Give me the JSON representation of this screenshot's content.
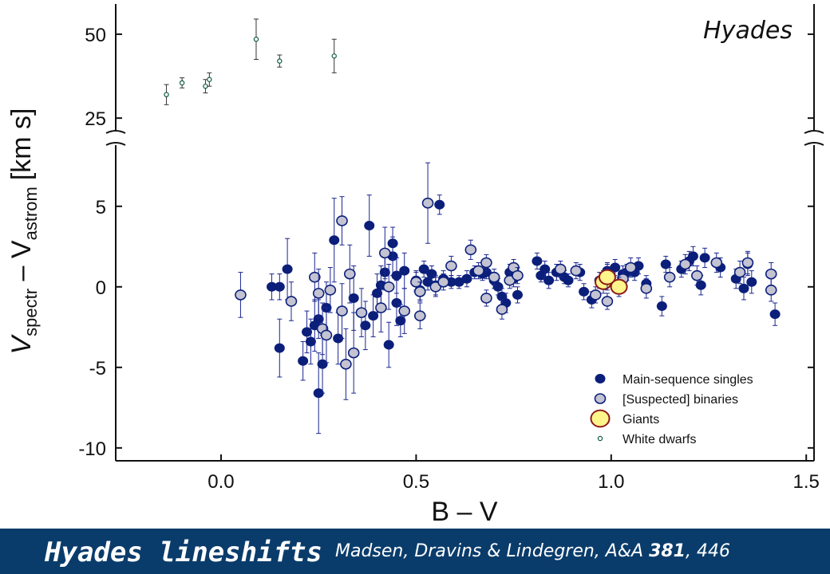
{
  "chart_data": {
    "type": "scatter",
    "title": "Hyades",
    "xlabel": "B – V",
    "ylabel_main": "V",
    "ylabel_sub1": "spectr",
    "ylabel_mid": " – V",
    "ylabel_sub2": "astrom",
    "ylabel_unit": "[km s]",
    "xlim": [
      -0.27,
      1.52
    ],
    "x_ticks": [
      "0.0",
      "0.5",
      "1.0",
      "1.5"
    ],
    "x_tick_values": [
      0.0,
      0.5,
      1.0,
      1.5
    ],
    "ylim_lower": [
      -10.8,
      8.8
    ],
    "y_ticks_lower": [
      "5",
      "0",
      "-5",
      "-10"
    ],
    "y_tick_values_lower": [
      5,
      0,
      -5,
      -10
    ],
    "ylim_upper": [
      21,
      59
    ],
    "y_ticks_upper": [
      "50",
      "25"
    ],
    "y_tick_values_upper": [
      50,
      25
    ],
    "legend_position": "bottom-right",
    "colors": {
      "main_sequence": "#0b1f7a",
      "binaries": "#c3c3d2",
      "giants": "#fff58a",
      "giant_edge": "#8b1a1a",
      "white_dwarf": "#0d5a40",
      "errorbar": "#1a2690"
    },
    "series": [
      {
        "name": "Main-sequence singles",
        "points": [
          [
            0.13,
            0.0,
            0.8
          ],
          [
            0.15,
            0.0,
            0.8
          ],
          [
            0.15,
            -3.8,
            1.8
          ],
          [
            0.17,
            1.1,
            1.9
          ],
          [
            0.21,
            -4.6,
            1.2
          ],
          [
            0.22,
            -2.8,
            1.3
          ],
          [
            0.23,
            -3.4,
            1.4
          ],
          [
            0.24,
            -2.4,
            1.6
          ],
          [
            0.25,
            -6.6,
            2.5
          ],
          [
            0.25,
            -2.0,
            1.2
          ],
          [
            0.26,
            -4.8,
            1.8
          ],
          [
            0.27,
            -1.3,
            1.6
          ],
          [
            0.29,
            2.9,
            2.6
          ],
          [
            0.3,
            -3.2,
            1.6
          ],
          [
            0.34,
            -0.7,
            2.0
          ],
          [
            0.37,
            -2.4,
            1.5
          ],
          [
            0.38,
            3.8,
            1.9
          ],
          [
            0.39,
            -1.8,
            1.3
          ],
          [
            0.4,
            -0.4,
            1.2
          ],
          [
            0.41,
            0.1,
            1.2
          ],
          [
            0.42,
            0.9,
            1.1
          ],
          [
            0.43,
            -3.6,
            1.4
          ],
          [
            0.44,
            1.9,
            1.2
          ],
          [
            0.44,
            2.7,
            1.0
          ],
          [
            0.45,
            -1.0,
            1.4
          ],
          [
            0.45,
            0.7,
            1.1
          ],
          [
            0.46,
            -2.1,
            1.0
          ],
          [
            0.47,
            1.0,
            1.1
          ],
          [
            0.5,
            0.4,
            0.6
          ],
          [
            0.51,
            -0.2,
            0.6
          ],
          [
            0.52,
            1.1,
            0.5
          ],
          [
            0.53,
            0.3,
            0.5
          ],
          [
            0.54,
            0.8,
            0.5
          ],
          [
            0.55,
            0.1,
            0.6
          ],
          [
            0.56,
            5.1,
            0.6
          ],
          [
            0.57,
            0.5,
            0.5
          ],
          [
            0.59,
            0.3,
            0.4
          ],
          [
            0.61,
            0.3,
            0.4
          ],
          [
            0.63,
            0.5,
            0.5
          ],
          [
            0.65,
            0.9,
            0.4
          ],
          [
            0.67,
            0.8,
            0.4
          ],
          [
            0.68,
            0.9,
            0.4
          ],
          [
            0.7,
            0.4,
            0.5
          ],
          [
            0.71,
            0.0,
            0.5
          ],
          [
            0.72,
            -0.6,
            0.5
          ],
          [
            0.73,
            -1.0,
            0.6
          ],
          [
            0.74,
            0.9,
            0.5
          ],
          [
            0.75,
            0.5,
            0.5
          ],
          [
            0.76,
            -0.5,
            0.5
          ],
          [
            0.81,
            1.6,
            0.5
          ],
          [
            0.82,
            0.7,
            0.4
          ],
          [
            0.83,
            1.1,
            0.5
          ],
          [
            0.84,
            0.4,
            0.5
          ],
          [
            0.86,
            0.9,
            0.5
          ],
          [
            0.88,
            0.6,
            0.4
          ],
          [
            0.89,
            0.4,
            0.4
          ],
          [
            0.92,
            0.9,
            0.5
          ],
          [
            0.93,
            -0.3,
            0.5
          ],
          [
            0.95,
            -0.8,
            0.5
          ],
          [
            0.97,
            0.4,
            0.5
          ],
          [
            0.99,
            1.0,
            0.5
          ],
          [
            1.01,
            1.2,
            0.5
          ],
          [
            1.03,
            0.8,
            0.5
          ],
          [
            1.04,
            0.9,
            0.5
          ],
          [
            1.06,
            0.9,
            0.5
          ],
          [
            1.07,
            1.3,
            0.5
          ],
          [
            1.09,
            0.2,
            0.5
          ],
          [
            1.13,
            -1.2,
            0.6
          ],
          [
            1.14,
            1.4,
            0.5
          ],
          [
            1.18,
            1.1,
            0.5
          ],
          [
            1.2,
            1.6,
            0.6
          ],
          [
            1.21,
            1.9,
            0.6
          ],
          [
            1.23,
            0.1,
            0.6
          ],
          [
            1.24,
            1.8,
            0.6
          ],
          [
            1.28,
            1.2,
            0.6
          ],
          [
            1.32,
            0.5,
            0.6
          ],
          [
            1.34,
            -0.1,
            0.7
          ],
          [
            1.35,
            1.4,
            0.7
          ],
          [
            1.36,
            0.3,
            0.7
          ],
          [
            1.42,
            -1.7,
            0.7
          ]
        ]
      },
      {
        "name": "[Suspected] binaries",
        "points": [
          [
            0.05,
            -0.5,
            1.4
          ],
          [
            0.18,
            -0.9,
            1.2
          ],
          [
            0.24,
            0.6,
            1.5
          ],
          [
            0.25,
            -0.4,
            1.5
          ],
          [
            0.26,
            -2.6,
            1.6
          ],
          [
            0.27,
            -3.0,
            1.7
          ],
          [
            0.28,
            -0.2,
            1.4
          ],
          [
            0.31,
            4.1,
            1.5
          ],
          [
            0.31,
            -1.5,
            1.7
          ],
          [
            0.32,
            -4.8,
            2.2
          ],
          [
            0.33,
            0.8,
            1.8
          ],
          [
            0.34,
            -4.1,
            2.5
          ],
          [
            0.36,
            -1.6,
            1.5
          ],
          [
            0.41,
            -1.3,
            1.5
          ],
          [
            0.42,
            2.1,
            1.6
          ],
          [
            0.43,
            0.0,
            1.4
          ],
          [
            0.47,
            -1.5,
            1.4
          ],
          [
            0.5,
            0.3,
            0.6
          ],
          [
            0.51,
            -1.8,
            0.8
          ],
          [
            0.51,
            -0.3,
            0.6
          ],
          [
            0.53,
            5.2,
            2.5
          ],
          [
            0.55,
            0.0,
            0.6
          ],
          [
            0.57,
            0.3,
            0.5
          ],
          [
            0.59,
            1.3,
            0.6
          ],
          [
            0.64,
            2.3,
            0.6
          ],
          [
            0.66,
            1.0,
            0.5
          ],
          [
            0.68,
            1.5,
            0.5
          ],
          [
            0.68,
            -0.7,
            0.5
          ],
          [
            0.7,
            0.6,
            0.5
          ],
          [
            0.72,
            -1.4,
            0.6
          ],
          [
            0.74,
            0.4,
            0.5
          ],
          [
            0.75,
            1.2,
            0.5
          ],
          [
            0.76,
            0.7,
            0.5
          ],
          [
            0.87,
            1.1,
            0.5
          ],
          [
            0.91,
            1.0,
            0.5
          ],
          [
            0.96,
            -0.5,
            0.5
          ],
          [
            0.99,
            -0.9,
            0.5
          ],
          [
            1.03,
            0.5,
            0.5
          ],
          [
            1.05,
            1.2,
            0.6
          ],
          [
            1.09,
            -0.1,
            0.6
          ],
          [
            1.15,
            0.6,
            0.6
          ],
          [
            1.19,
            1.4,
            0.6
          ],
          [
            1.22,
            0.7,
            0.6
          ],
          [
            1.27,
            1.5,
            0.6
          ],
          [
            1.33,
            0.9,
            0.7
          ],
          [
            1.35,
            1.5,
            0.7
          ],
          [
            1.41,
            0.8,
            0.7
          ],
          [
            1.41,
            -0.2,
            0.7
          ]
        ]
      },
      {
        "name": "Giants",
        "points": [
          [
            0.98,
            0.3,
            0.7
          ],
          [
            0.99,
            0.6,
            0.8
          ],
          [
            1.02,
            0.0,
            0.6
          ]
        ]
      },
      {
        "name": "White dwarfs",
        "points": [
          [
            -0.14,
            32,
            3
          ],
          [
            -0.1,
            35.5,
            1.5
          ],
          [
            -0.04,
            34.5,
            2
          ],
          [
            -0.03,
            36.5,
            2
          ],
          [
            0.09,
            48.5,
            6
          ],
          [
            0.15,
            42,
            1.8
          ],
          [
            0.29,
            43.5,
            5
          ]
        ]
      }
    ]
  },
  "footer": {
    "title": "Hyades lineshifts",
    "citation_authors": "Madsen, Dravins & Lindegren,",
    "citation_journal": "A&A",
    "citation_volume": "381",
    "citation_page": ", 446"
  }
}
